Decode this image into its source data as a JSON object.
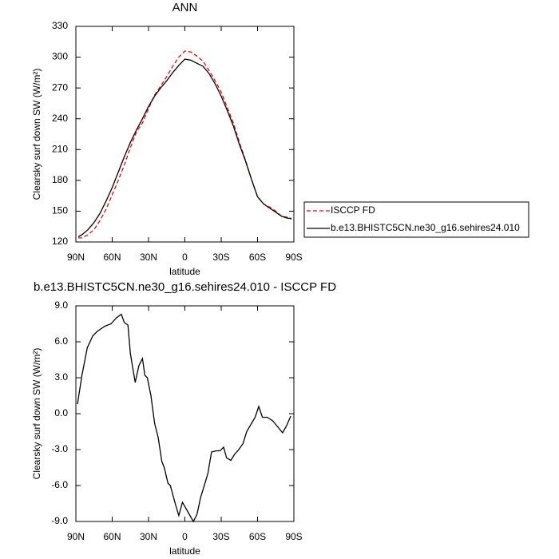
{
  "chart_data": [
    {
      "type": "line",
      "title": "ANN",
      "x": [
        88,
        85,
        80,
        75,
        70,
        65,
        60,
        55,
        50,
        45,
        40,
        35,
        30,
        25,
        20,
        15,
        10,
        5,
        0,
        -5,
        -10,
        -15,
        -20,
        -25,
        -30,
        -35,
        -40,
        -45,
        -50,
        -55,
        -60,
        -65,
        -70,
        -75,
        -80,
        -85,
        -88
      ],
      "series": [
        {
          "name": "ISCCP FD",
          "color": "#ff0000",
          "line_style": "dashed",
          "values": [
            124,
            124,
            127,
            132,
            141,
            152,
            166,
            180,
            195,
            212,
            227,
            236,
            250,
            263,
            272,
            281,
            291,
            300,
            306,
            305,
            301,
            296,
            287,
            277,
            266,
            251,
            236,
            217,
            200,
            181,
            164,
            157,
            154,
            150,
            145,
            144,
            142
          ]
        },
        {
          "name": "b.e13.BHISTC5CN.ne30_g16.sehires24.010",
          "color": "#000000",
          "line_style": "solid",
          "values": [
            125,
            127,
            132,
            139,
            148,
            160,
            173,
            188,
            203,
            217,
            229,
            240,
            252,
            262,
            270,
            277,
            285,
            292,
            298,
            297,
            294,
            291,
            284,
            274,
            262,
            248,
            233,
            215,
            199,
            181,
            164,
            157,
            153,
            149,
            145,
            143,
            143
          ]
        }
      ],
      "xlim": [
        90,
        -90
      ],
      "ylim": [
        120,
        330
      ],
      "xticks": [
        {
          "value": 90,
          "label": "90N"
        },
        {
          "value": 60,
          "label": "60N"
        },
        {
          "value": 30,
          "label": "30N"
        },
        0,
        {
          "value": -30,
          "label": "30S"
        },
        {
          "value": -60,
          "label": "60S"
        },
        {
          "value": -90,
          "label": "90S"
        }
      ],
      "yticks": [
        120,
        150,
        180,
        210,
        240,
        270,
        300,
        330
      ],
      "xlabel": "latitude",
      "ylabel": "Clearsky surf down SW (W/m²)",
      "legend": "outside-right"
    },
    {
      "type": "line",
      "title": "b.e13.BHISTC5CN.ne30_g16.sehires24.010 - ISCCP FD",
      "x": [
        88.7,
        85,
        80.6,
        76,
        72,
        66,
        61,
        56.5,
        52.5,
        50,
        47,
        45,
        41,
        38,
        35,
        33,
        31,
        28,
        25,
        22,
        19,
        17,
        14,
        12,
        8,
        5,
        2,
        -2.5,
        -7,
        -10,
        -13,
        -16,
        -19,
        -22,
        -26,
        -29,
        -32,
        -34.5,
        -38,
        -41,
        -44.5,
        -48,
        -51,
        -54.5,
        -58,
        -61,
        -64,
        -68,
        -72.5,
        -76.7,
        -80.7,
        -84,
        -87.4
      ],
      "series": [
        {
          "color": "#000000",
          "line_style": "solid",
          "values": [
            0.8,
            3.2,
            5.5,
            6.5,
            6.9,
            7.3,
            7.5,
            8.0,
            8.3,
            7.6,
            7.4,
            5.0,
            2.6,
            4.0,
            4.6,
            3.2,
            3.0,
            1.5,
            -0.8,
            -2.0,
            -4.0,
            -4.5,
            -5.8,
            -6.0,
            -7.5,
            -8.5,
            -7.4,
            -8.2,
            -9.0,
            -8.4,
            -7.0,
            -6.0,
            -5.0,
            -3.2,
            -3.1,
            -3.1,
            -2.8,
            -3.7,
            -3.9,
            -3.4,
            -3.0,
            -2.5,
            -1.5,
            -0.9,
            -0.3,
            0.6,
            -0.3,
            -0.3,
            -0.6,
            -1.1,
            -1.6,
            -1.0,
            -0.2
          ]
        }
      ],
      "xlim": [
        90,
        -90
      ],
      "ylim": [
        -9,
        9
      ],
      "xticks": [
        {
          "value": 90,
          "label": "90N"
        },
        {
          "value": 60,
          "label": "60N"
        },
        {
          "value": 30,
          "label": "30N"
        },
        0,
        {
          "value": -30,
          "label": "30S"
        },
        {
          "value": -60,
          "label": "60S"
        },
        {
          "value": -90,
          "label": "90S"
        }
      ],
      "yticks": [
        {
          "value": -9,
          "label": "-9.0"
        },
        {
          "value": -6,
          "label": "-6.0"
        },
        {
          "value": -3,
          "label": "-3.0"
        },
        {
          "value": 0,
          "label": "0.0"
        },
        {
          "value": 3,
          "label": "3.0"
        },
        {
          "value": 6,
          "label": "6.0"
        },
        {
          "value": 9,
          "label": "9.0"
        }
      ],
      "xlabel": "latitude",
      "ylabel": "Clearsky surf down SW (W/m²)"
    }
  ]
}
